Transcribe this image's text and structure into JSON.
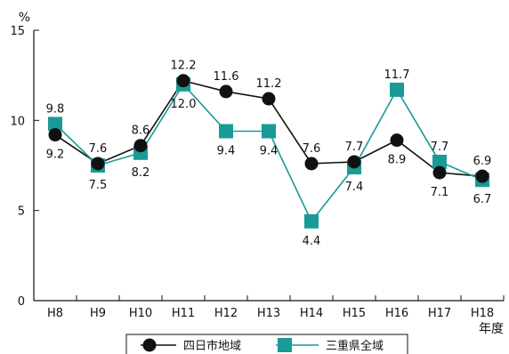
{
  "chart_data": {
    "type": "line",
    "y_unit": "%",
    "x_unit": "年度",
    "ylim": [
      0,
      15
    ],
    "yticks": [
      0,
      5,
      10,
      15
    ],
    "categories": [
      "H8",
      "H9",
      "H10",
      "H11",
      "H12",
      "H13",
      "H14",
      "H15",
      "H16",
      "H17",
      "H18"
    ],
    "series": [
      {
        "name": "四日市地域",
        "marker": "circle",
        "color": "#111111",
        "values": [
          9.2,
          7.6,
          8.6,
          12.2,
          11.6,
          11.2,
          7.6,
          7.7,
          8.9,
          7.1,
          6.9
        ]
      },
      {
        "name": "三重県全域",
        "marker": "square",
        "color": "#1a9a96",
        "values": [
          9.8,
          7.5,
          8.2,
          12.0,
          9.4,
          9.4,
          4.4,
          7.4,
          11.7,
          7.7,
          6.7
        ]
      }
    ],
    "data_labels": [
      {
        "text": "9.8",
        "i": 0,
        "pos": "above"
      },
      {
        "text": "9.2",
        "i": 0,
        "pos": "below"
      },
      {
        "text": "7.6",
        "i": 1,
        "pos": "above"
      },
      {
        "text": "7.5",
        "i": 1,
        "pos": "below"
      },
      {
        "text": "8.6",
        "i": 2,
        "pos": "above"
      },
      {
        "text": "8.2",
        "i": 2,
        "pos": "below"
      },
      {
        "text": "12.2",
        "i": 3,
        "pos": "above"
      },
      {
        "text": "12.0",
        "i": 3,
        "pos": "below"
      },
      {
        "text": "11.6",
        "i": 4,
        "pos": "above"
      },
      {
        "text": "9.4",
        "i": 4,
        "pos": "below"
      },
      {
        "text": "11.2",
        "i": 5,
        "pos": "above"
      },
      {
        "text": "9.4",
        "i": 5,
        "pos": "below"
      },
      {
        "text": "7.6",
        "i": 6,
        "pos": "above"
      },
      {
        "text": "4.4",
        "i": 6,
        "pos": "below"
      },
      {
        "text": "7.7",
        "i": 7,
        "pos": "above"
      },
      {
        "text": "7.4",
        "i": 7,
        "pos": "below"
      },
      {
        "text": "11.7",
        "i": 8,
        "pos": "above"
      },
      {
        "text": "8.9",
        "i": 8,
        "pos": "below"
      },
      {
        "text": "7.7",
        "i": 9,
        "pos": "above"
      },
      {
        "text": "7.1",
        "i": 9,
        "pos": "below"
      },
      {
        "text": "6.9",
        "i": 10,
        "pos": "above"
      },
      {
        "text": "6.7",
        "i": 10,
        "pos": "below"
      }
    ]
  }
}
